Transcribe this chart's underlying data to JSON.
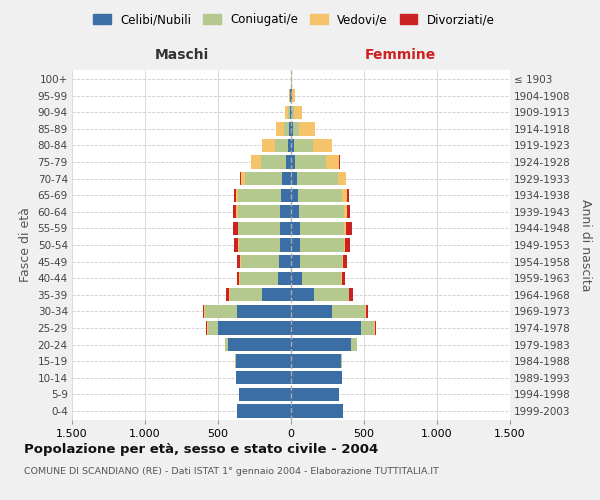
{
  "age_groups": [
    "0-4",
    "5-9",
    "10-14",
    "15-19",
    "20-24",
    "25-29",
    "30-34",
    "35-39",
    "40-44",
    "45-49",
    "50-54",
    "55-59",
    "60-64",
    "65-69",
    "70-74",
    "75-79",
    "80-84",
    "85-89",
    "90-94",
    "95-99",
    "100+"
  ],
  "birth_years": [
    "1999-2003",
    "1994-1998",
    "1989-1993",
    "1984-1988",
    "1979-1983",
    "1974-1978",
    "1969-1973",
    "1964-1968",
    "1959-1963",
    "1954-1958",
    "1949-1953",
    "1944-1948",
    "1939-1943",
    "1934-1938",
    "1929-1933",
    "1924-1928",
    "1919-1923",
    "1914-1918",
    "1909-1913",
    "1904-1908",
    "≤ 1903"
  ],
  "colors": {
    "celibi": "#3a6ea5",
    "coniugati": "#b5c98e",
    "vedovi": "#f5c36a",
    "divorziati": "#cc2222"
  },
  "maschi": {
    "celibi": [
      370,
      355,
      375,
      380,
      430,
      500,
      370,
      200,
      90,
      80,
      75,
      75,
      75,
      70,
      60,
      35,
      20,
      15,
      8,
      5,
      2
    ],
    "coniugati": [
      0,
      0,
      0,
      5,
      25,
      70,
      220,
      220,
      260,
      265,
      280,
      285,
      290,
      290,
      255,
      170,
      90,
      30,
      15,
      5,
      0
    ],
    "vedovi": [
      0,
      0,
      0,
      0,
      0,
      5,
      5,
      5,
      5,
      5,
      5,
      5,
      10,
      20,
      30,
      70,
      90,
      55,
      20,
      5,
      0
    ],
    "divorziati": [
      0,
      0,
      0,
      0,
      0,
      5,
      10,
      20,
      15,
      20,
      30,
      30,
      20,
      10,
      5,
      0,
      0,
      0,
      0,
      0,
      0
    ]
  },
  "femmine": {
    "celibi": [
      355,
      330,
      350,
      340,
      410,
      480,
      280,
      160,
      75,
      65,
      60,
      60,
      55,
      50,
      40,
      28,
      18,
      12,
      8,
      5,
      2
    ],
    "coniugati": [
      0,
      0,
      0,
      8,
      40,
      90,
      230,
      235,
      270,
      285,
      300,
      305,
      310,
      300,
      280,
      210,
      130,
      40,
      15,
      5,
      0
    ],
    "vedovi": [
      0,
      0,
      0,
      0,
      0,
      5,
      5,
      5,
      5,
      8,
      10,
      15,
      20,
      35,
      55,
      90,
      130,
      110,
      55,
      15,
      2
    ],
    "divorziati": [
      0,
      0,
      0,
      0,
      0,
      5,
      15,
      25,
      20,
      25,
      35,
      35,
      20,
      10,
      5,
      5,
      5,
      0,
      0,
      0,
      0
    ]
  },
  "xlim": 1500,
  "xtick_positions": [
    -1500,
    -1000,
    -500,
    0,
    500,
    1000,
    1500
  ],
  "xtick_labels": [
    "1.500",
    "1.000",
    "500",
    "0",
    "500",
    "1.000",
    "1.500"
  ],
  "title": "Popolazione per età, sesso e stato civile - 2004",
  "subtitle": "COMUNE DI SCANDIANO (RE) - Dati ISTAT 1° gennaio 2004 - Elaborazione TUTTITALIA.IT",
  "ylabel_left": "Fasce di età",
  "ylabel_right": "Anni di nascita",
  "legend_labels": [
    "Celibi/Nubili",
    "Coniugati/e",
    "Vedovi/e",
    "Divorziati/e"
  ],
  "maschi_label": "Maschi",
  "femmine_label": "Femmine",
  "maschi_color": "#333333",
  "femmine_color": "#cc2222",
  "bg_color": "#f0f0f0",
  "plot_bg": "#ffffff",
  "grid_color": "#cccccc",
  "center_line_color": "#aaaaaa"
}
